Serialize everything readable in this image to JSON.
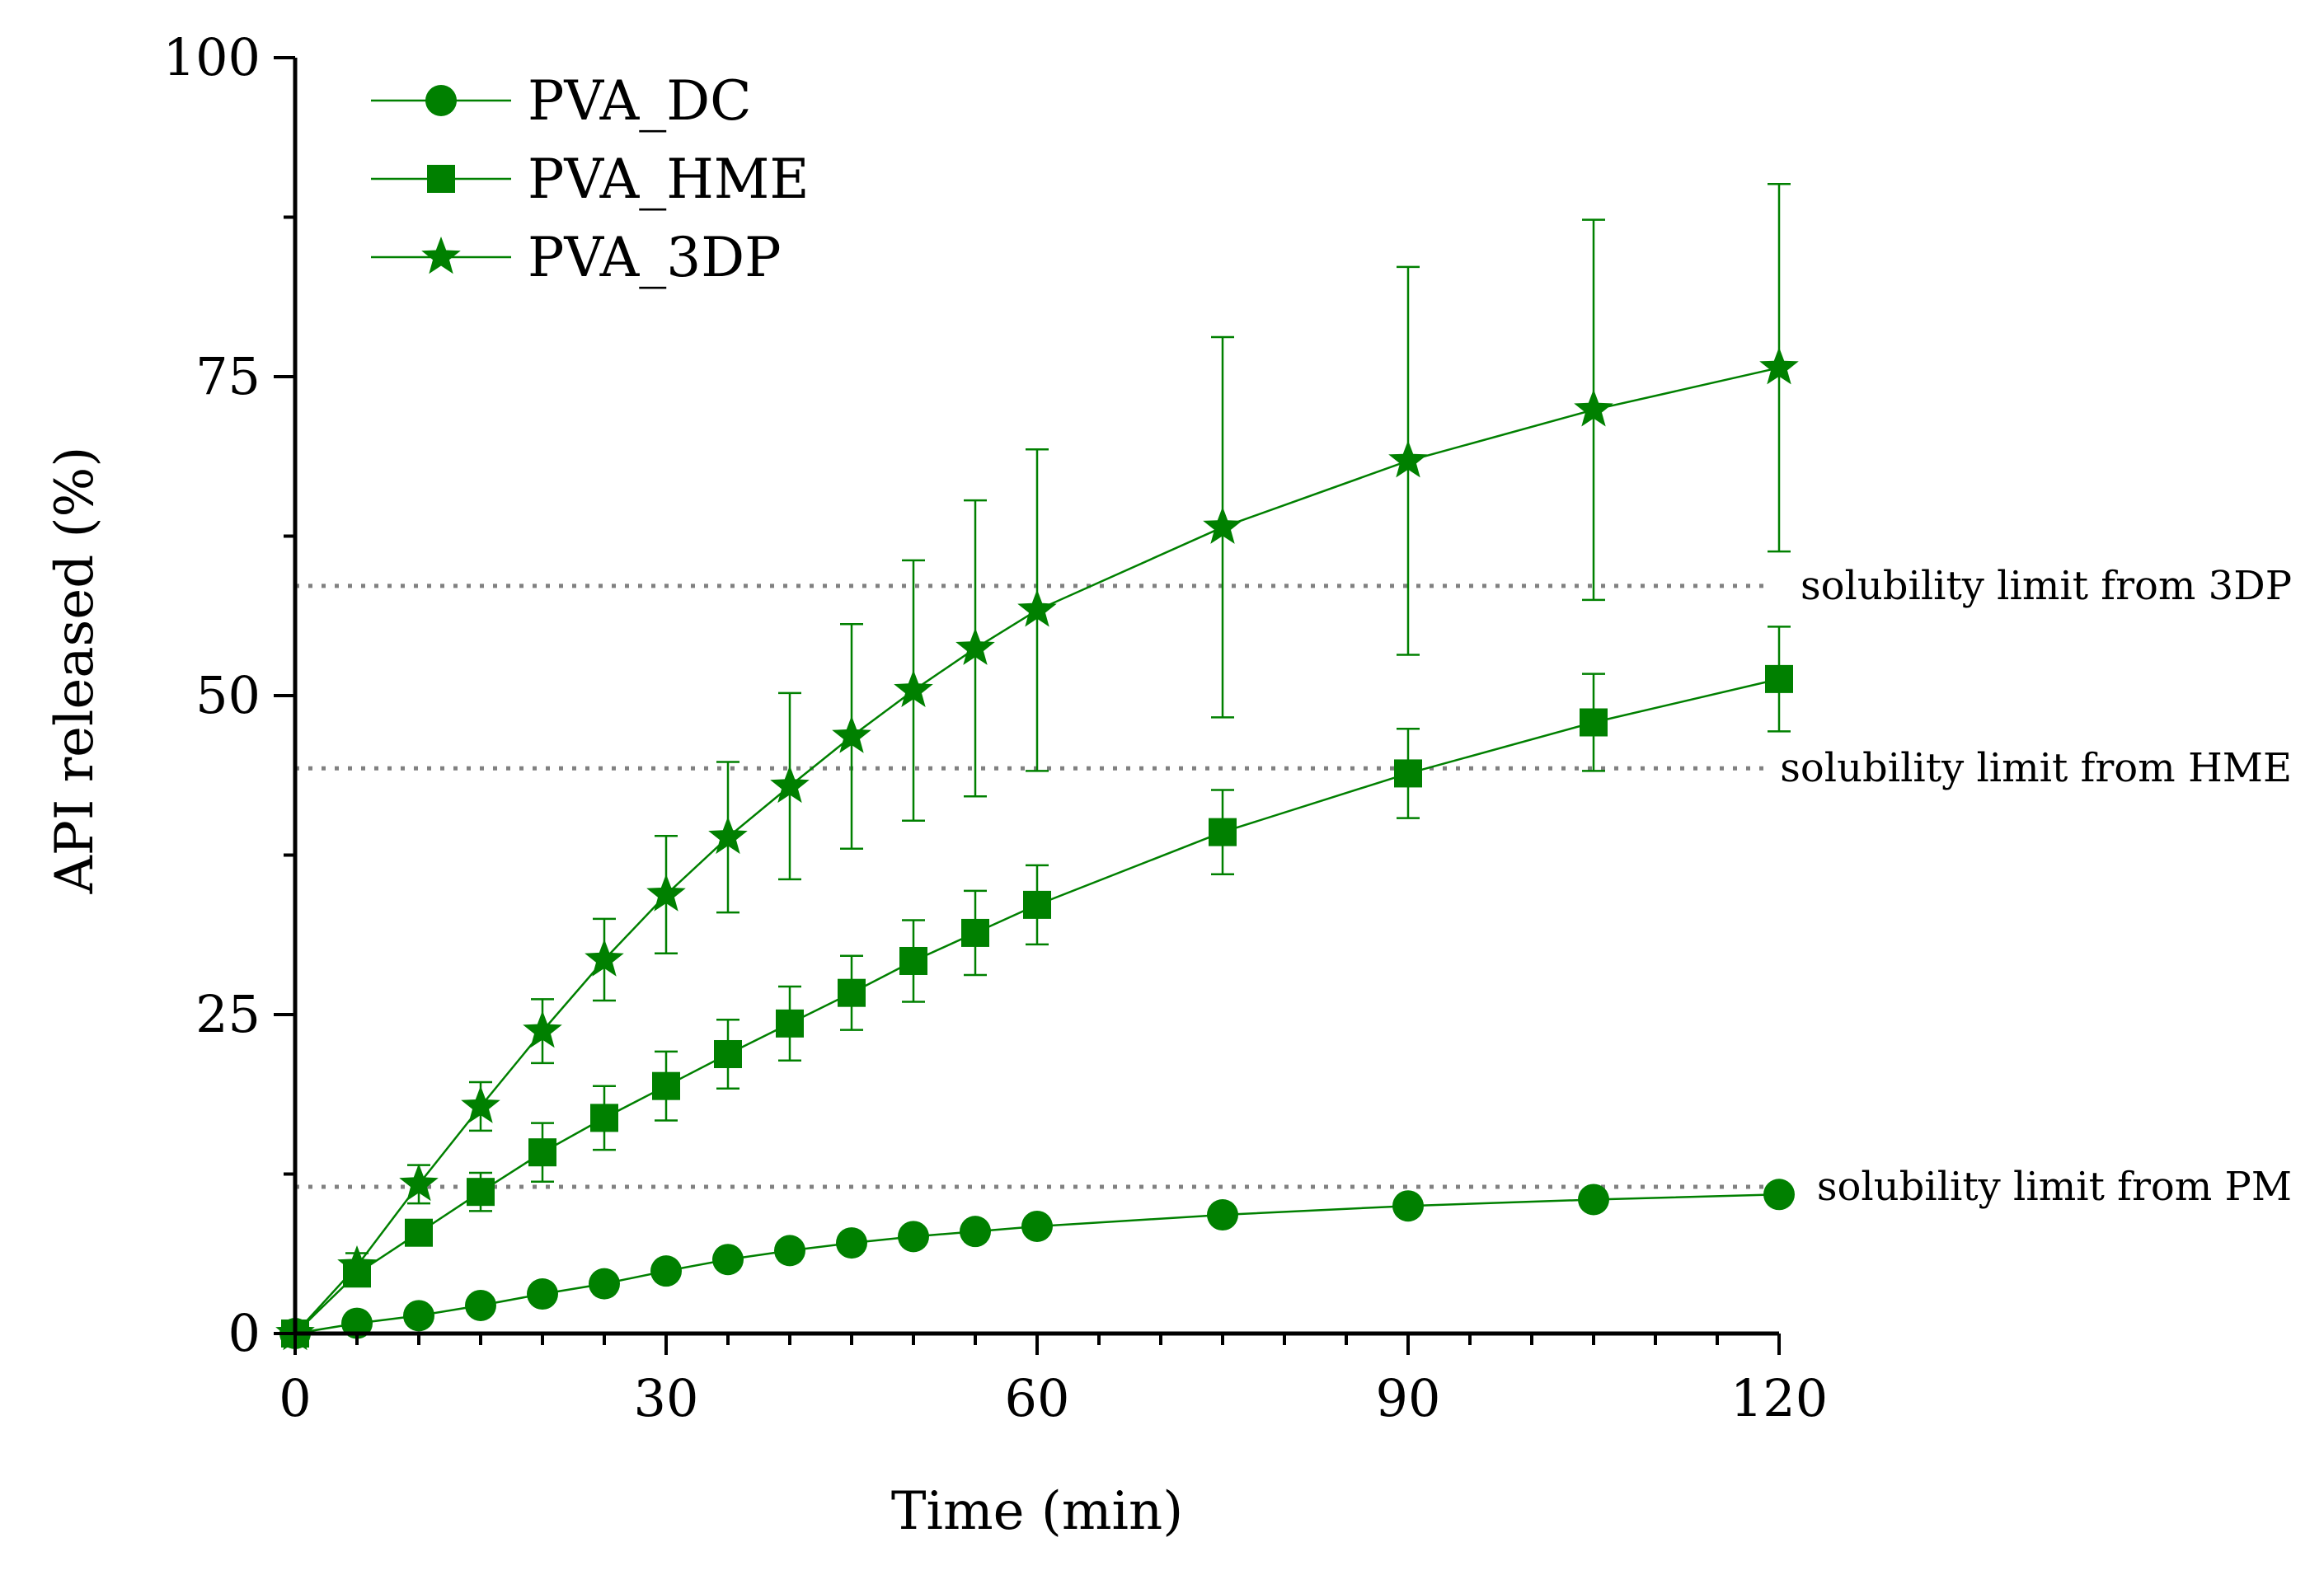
{
  "chart_data": {
    "type": "line",
    "xlabel": "Time (min)",
    "ylabel": "API released (%)",
    "xlim": [
      0,
      120
    ],
    "ylim": [
      0,
      100
    ],
    "x_ticks": [
      0,
      30,
      60,
      90,
      120
    ],
    "y_ticks": [
      0,
      25,
      50,
      75,
      100
    ],
    "grid": false,
    "legend_position": "top-left",
    "color": "#008000",
    "annotation_line_color": "#808080",
    "x": [
      0,
      5,
      10,
      15,
      20,
      25,
      30,
      35,
      40,
      45,
      50,
      55,
      60,
      75,
      90,
      105,
      120
    ],
    "series": [
      {
        "name": "PVA_DC",
        "marker": "circle",
        "values": [
          0,
          0.8,
          1.4,
          2.2,
          3.1,
          3.9,
          4.9,
          5.8,
          6.5,
          7.1,
          7.6,
          8.0,
          8.4,
          9.3,
          10.0,
          10.5,
          10.9
        ],
        "errors": [
          0,
          0.2,
          0.3,
          0.3,
          0.3,
          0.3,
          0.3,
          0.3,
          0.3,
          0.3,
          0.3,
          0.3,
          0.3,
          0.3,
          0.4,
          0.4,
          0.4
        ]
      },
      {
        "name": "PVA_HME",
        "marker": "square",
        "values": [
          0,
          4.7,
          7.9,
          11.1,
          14.2,
          16.9,
          19.4,
          21.9,
          24.3,
          26.7,
          29.2,
          31.4,
          33.6,
          39.3,
          43.9,
          47.9,
          51.3
        ],
        "errors": [
          0,
          0.8,
          1.0,
          1.5,
          2.3,
          2.5,
          2.7,
          2.7,
          2.9,
          2.9,
          3.2,
          3.3,
          3.1,
          3.3,
          3.5,
          3.8,
          4.1
        ]
      },
      {
        "name": "PVA_3DP",
        "marker": "star",
        "values": [
          0,
          5.3,
          11.7,
          17.8,
          23.7,
          29.3,
          34.4,
          38.9,
          42.9,
          46.8,
          50.4,
          53.7,
          56.7,
          63.2,
          68.4,
          72.4,
          75.7
        ],
        "errors": [
          0,
          1.0,
          1.5,
          1.9,
          2.5,
          3.2,
          4.6,
          5.9,
          7.3,
          8.8,
          10.2,
          11.6,
          12.6,
          14.9,
          15.2,
          14.9,
          14.4
        ]
      }
    ],
    "annotations": [
      {
        "text": "solubility limit from 3DP",
        "y": 58.6
      },
      {
        "text": "solubility limit from HME",
        "y": 44.3
      },
      {
        "text": "solubility limit from PM",
        "y": 11.5
      }
    ]
  }
}
